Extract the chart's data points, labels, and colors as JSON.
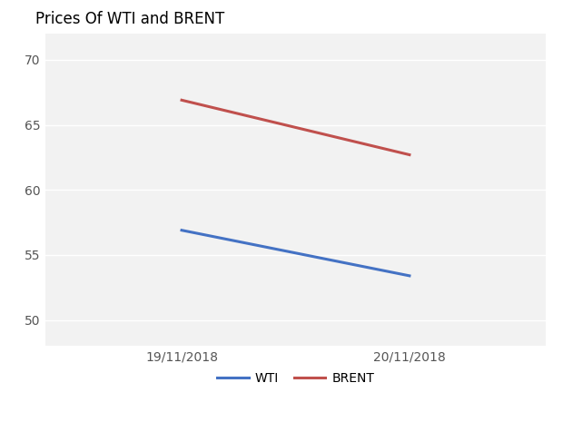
{
  "title": "Prices Of WTI and BRENT",
  "x_labels": [
    "19/11/2018",
    "20/11/2018"
  ],
  "wti_values": [
    56.9,
    53.4
  ],
  "brent_values": [
    66.9,
    62.7
  ],
  "wti_color": "#4472C4",
  "brent_color": "#C0504D",
  "ylim": [
    48,
    72
  ],
  "yticks": [
    50,
    55,
    60,
    65,
    70
  ],
  "background_color": "#FFFFFF",
  "plot_bg_color": "#F2F2F2",
  "grid_color": "#FFFFFF",
  "title_fontsize": 12,
  "axis_fontsize": 10,
  "legend_fontsize": 10,
  "linewidth": 2.2,
  "x_positions": [
    0.25,
    0.75
  ]
}
